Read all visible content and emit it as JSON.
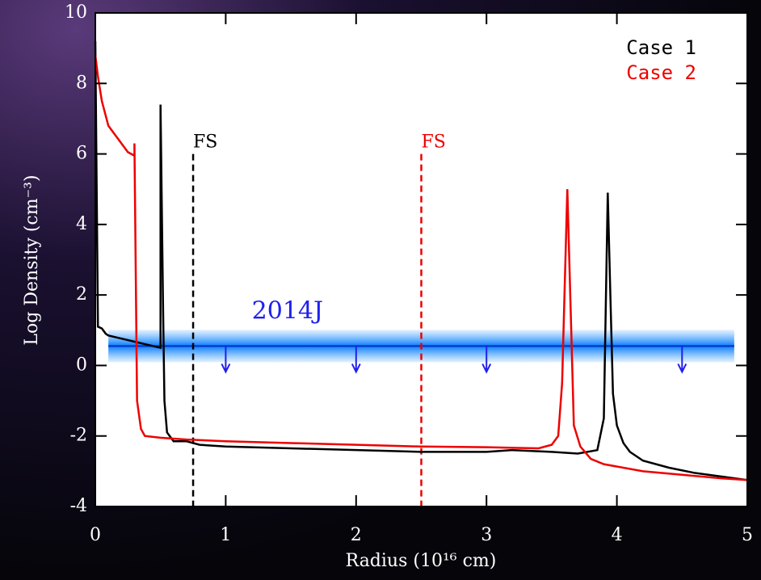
{
  "chart_data": {
    "type": "line",
    "xlabel": "Radius (10¹⁶ cm)",
    "ylabel": "Log Density (cm⁻³)",
    "xlim": [
      0,
      5
    ],
    "ylim": [
      -4,
      10
    ],
    "xticks": [
      0,
      1,
      2,
      3,
      4,
      5
    ],
    "yticks": [
      -4,
      -2,
      0,
      2,
      4,
      6,
      8,
      10
    ],
    "legend": "upper right",
    "series": [
      {
        "name": "Case 1",
        "color": "#000000",
        "x": [
          0.0,
          0.02,
          0.05,
          0.08,
          0.1,
          0.5,
          0.5,
          0.52,
          0.53,
          0.55,
          0.6,
          0.7,
          0.8,
          1.0,
          1.5,
          2.0,
          2.5,
          3.0,
          3.2,
          3.5,
          3.7,
          3.85,
          3.9,
          3.93,
          3.95,
          3.97,
          4.0,
          4.05,
          4.1,
          4.2,
          4.4,
          4.6,
          4.8,
          5.0
        ],
        "values": [
          9.2,
          1.1,
          1.05,
          0.9,
          0.85,
          0.5,
          7.4,
          1.5,
          -1.0,
          -1.9,
          -2.15,
          -2.15,
          -2.25,
          -2.3,
          -2.35,
          -2.4,
          -2.45,
          -2.45,
          -2.4,
          -2.45,
          -2.5,
          -2.4,
          -1.5,
          4.9,
          2.0,
          -0.8,
          -1.7,
          -2.2,
          -2.45,
          -2.7,
          -2.9,
          -3.05,
          -3.15,
          -3.25
        ]
      },
      {
        "name": "Case 2",
        "color": "#ee0000",
        "x": [
          0.0,
          0.02,
          0.05,
          0.1,
          0.2,
          0.25,
          0.3,
          0.3,
          0.32,
          0.35,
          0.38,
          0.5,
          0.7,
          1.0,
          1.5,
          2.0,
          2.5,
          3.0,
          3.4,
          3.5,
          3.55,
          3.58,
          3.62,
          3.65,
          3.67,
          3.72,
          3.8,
          3.9,
          4.2,
          4.5,
          4.8,
          5.0
        ],
        "values": [
          8.8,
          8.2,
          7.5,
          6.8,
          6.3,
          6.05,
          5.95,
          6.3,
          -1.0,
          -1.8,
          -2.0,
          -2.05,
          -2.1,
          -2.15,
          -2.2,
          -2.25,
          -2.3,
          -2.32,
          -2.35,
          -2.25,
          -2.0,
          -0.5,
          5.0,
          1.0,
          -1.7,
          -2.3,
          -2.65,
          -2.8,
          -3.0,
          -3.1,
          -3.2,
          -3.25
        ]
      }
    ],
    "vlines": [
      {
        "label": "FS",
        "x": 0.75,
        "top": 6,
        "color": "#000000"
      },
      {
        "label": "FS",
        "x": 2.5,
        "top": 6,
        "color": "#ee0000"
      }
    ],
    "band": {
      "label": "2014J",
      "value": 0.55,
      "x": [
        0.1,
        4.9
      ],
      "label_x": 1.2,
      "arrows_x": [
        1,
        2,
        3,
        4.5
      ],
      "color": "#2020ee"
    }
  }
}
